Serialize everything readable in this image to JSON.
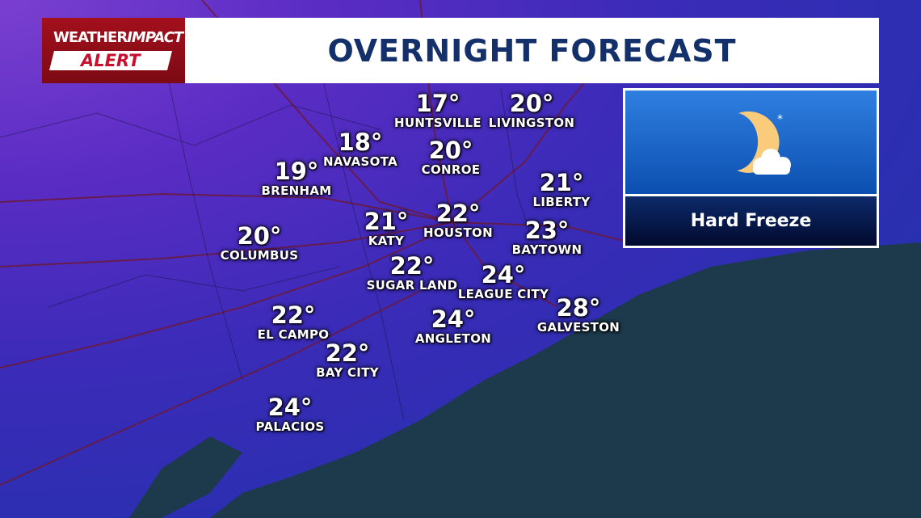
{
  "brand": {
    "line1_a": "WEATHER",
    "line1_b": "IMPACT",
    "line2": "ALERT"
  },
  "header": {
    "title": "OVERNIGHT FORECAST"
  },
  "panel": {
    "icon": "moon-cloud-snow-icon",
    "condition": "Hard Freeze"
  },
  "colors": {
    "title": "#13306b",
    "brand": "#a3101c",
    "gulf": "#1c3a4c"
  },
  "cities": [
    {
      "name": "HUNTSVILLE",
      "temp": "17°"
    },
    {
      "name": "LIVINGSTON",
      "temp": "20°"
    },
    {
      "name": "NAVASOTA",
      "temp": "18°"
    },
    {
      "name": "CONROE",
      "temp": "20°"
    },
    {
      "name": "BRENHAM",
      "temp": "19°"
    },
    {
      "name": "LIBERTY",
      "temp": "21°"
    },
    {
      "name": "KATY",
      "temp": "21°"
    },
    {
      "name": "HOUSTON",
      "temp": "22°"
    },
    {
      "name": "BAYTOWN",
      "temp": "23°"
    },
    {
      "name": "COLUMBUS",
      "temp": "20°"
    },
    {
      "name": "SUGAR LAND",
      "temp": "22°"
    },
    {
      "name": "LEAGUE CITY",
      "temp": "24°"
    },
    {
      "name": "GALVESTON",
      "temp": "28°"
    },
    {
      "name": "EL CAMPO",
      "temp": "22°"
    },
    {
      "name": "ANGLETON",
      "temp": "24°"
    },
    {
      "name": "BAY CITY",
      "temp": "22°"
    },
    {
      "name": "PALACIOS",
      "temp": "24°"
    }
  ]
}
